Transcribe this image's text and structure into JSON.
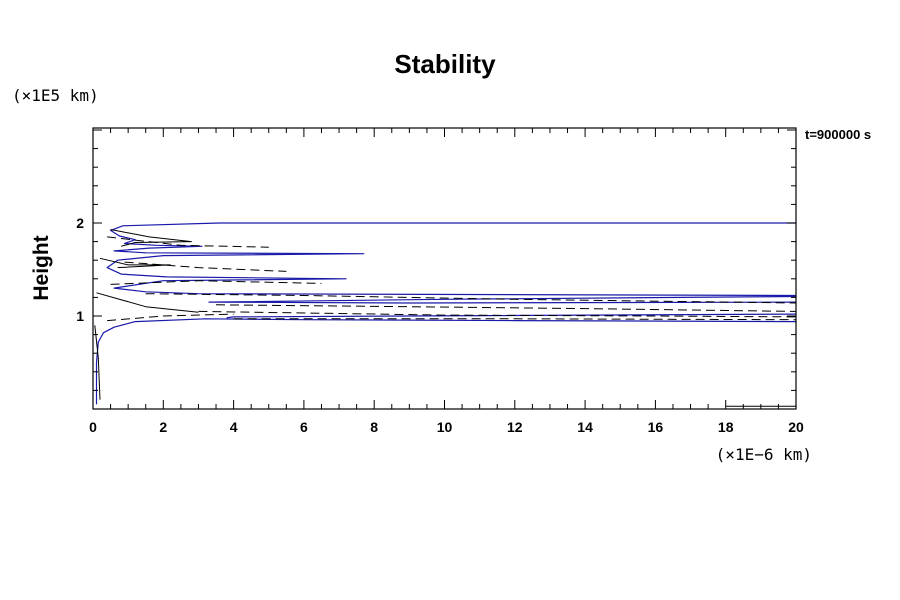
{
  "chart_data": {
    "type": "line",
    "title": "Stability",
    "ylabel": "Height",
    "xlabel": "",
    "x_unit": "(×1E−6 km)",
    "y_unit": "(×1E5 km)",
    "annotation": "t=900000 s",
    "xlim": [
      0,
      20
    ],
    "ylim": [
      0.03,
      3.0
    ],
    "x_ticks": [
      0,
      2,
      4,
      6,
      8,
      10,
      12,
      14,
      16,
      18,
      20
    ],
    "y_ticks": [
      1,
      2
    ],
    "grid": false,
    "colors": {
      "blue": "#1a1aaa",
      "black": "#000000"
    },
    "series": [
      {
        "color": "blue",
        "style": "solid",
        "points": [
          [
            20,
            2.0
          ],
          [
            3.6,
            2.0
          ],
          [
            0.85,
            1.97
          ],
          [
            0.5,
            1.92
          ],
          [
            0.75,
            1.86
          ],
          [
            1.2,
            1.82
          ],
          [
            0.9,
            1.78
          ],
          [
            1.8,
            1.76
          ],
          [
            3.1,
            1.75
          ],
          [
            1.6,
            1.73
          ],
          [
            0.6,
            1.7
          ],
          [
            1.5,
            1.68
          ],
          [
            7.7,
            1.67
          ],
          [
            2.0,
            1.65
          ],
          [
            0.7,
            1.6
          ],
          [
            0.4,
            1.52
          ],
          [
            0.8,
            1.45
          ],
          [
            2.1,
            1.42
          ],
          [
            7.2,
            1.4
          ],
          [
            2.0,
            1.38
          ],
          [
            0.6,
            1.3
          ],
          [
            1.5,
            1.26
          ],
          [
            3.0,
            1.24
          ],
          [
            20,
            1.22
          ]
        ]
      },
      {
        "color": "blue",
        "style": "solid",
        "points": [
          [
            20,
            1.21
          ],
          [
            10,
            1.18
          ],
          [
            3.3,
            1.15
          ],
          [
            9,
            1.14
          ],
          [
            20,
            1.15
          ]
        ]
      },
      {
        "color": "blue",
        "style": "solid",
        "points": [
          [
            20,
            0.94
          ],
          [
            12,
            0.95
          ],
          [
            6,
            0.96
          ],
          [
            3.2,
            0.97
          ],
          [
            1.2,
            0.94
          ],
          [
            0.6,
            0.88
          ],
          [
            0.3,
            0.82
          ],
          [
            0.15,
            0.72
          ],
          [
            0.1,
            0.5
          ],
          [
            0.1,
            0.05
          ]
        ]
      },
      {
        "color": "blue",
        "style": "solid",
        "points": [
          [
            20,
            1.02
          ],
          [
            9,
            1.0
          ],
          [
            4,
            0.99
          ],
          [
            3.8,
            0.98
          ]
        ]
      },
      {
        "color": "black",
        "style": "solid",
        "points": [
          [
            0.5,
            1.93
          ],
          [
            1.6,
            1.85
          ],
          [
            2.8,
            1.8
          ],
          [
            1.2,
            1.79
          ],
          [
            0.8,
            1.75
          ]
        ]
      },
      {
        "color": "black",
        "style": "solid",
        "points": [
          [
            0.2,
            1.62
          ],
          [
            1.0,
            1.55
          ],
          [
            2.2,
            1.55
          ],
          [
            0.7,
            1.52
          ]
        ]
      },
      {
        "color": "black",
        "style": "dashed",
        "points": [
          [
            0.4,
            1.85
          ],
          [
            2.5,
            1.76
          ],
          [
            5.0,
            1.74
          ]
        ]
      },
      {
        "color": "black",
        "style": "dashed",
        "points": [
          [
            0.9,
            1.58
          ],
          [
            3.0,
            1.52
          ],
          [
            5.5,
            1.48
          ]
        ]
      },
      {
        "color": "black",
        "style": "dashed",
        "points": [
          [
            0.5,
            1.34
          ],
          [
            3.0,
            1.38
          ],
          [
            6.5,
            1.35
          ]
        ]
      },
      {
        "color": "black",
        "style": "dashed",
        "points": [
          [
            1.5,
            1.24
          ],
          [
            6.0,
            1.22
          ],
          [
            12.0,
            1.18
          ],
          [
            20,
            1.14
          ]
        ]
      },
      {
        "color": "black",
        "style": "dashed",
        "points": [
          [
            3.5,
            1.12
          ],
          [
            9.0,
            1.1
          ],
          [
            14.0,
            1.08
          ],
          [
            20,
            1.05
          ]
        ]
      },
      {
        "color": "black",
        "style": "dashed",
        "points": [
          [
            3.0,
            1.05
          ],
          [
            10.0,
            1.01
          ],
          [
            16.0,
            1.0
          ],
          [
            20,
            0.99
          ]
        ]
      },
      {
        "color": "black",
        "style": "dashed",
        "points": [
          [
            4.0,
            0.97
          ],
          [
            12.0,
            0.97
          ],
          [
            20,
            0.96
          ]
        ]
      },
      {
        "color": "black",
        "style": "dashed",
        "points": [
          [
            0.4,
            0.95
          ],
          [
            2.0,
            1.0
          ],
          [
            4.0,
            1.02
          ]
        ]
      },
      {
        "color": "black",
        "style": "solid",
        "points": [
          [
            0.1,
            1.25
          ],
          [
            1.5,
            1.1
          ],
          [
            3.0,
            1.04
          ]
        ]
      },
      {
        "color": "black",
        "style": "solid",
        "points": [
          [
            0.05,
            0.9
          ],
          [
            0.15,
            0.55
          ],
          [
            0.2,
            0.1
          ]
        ]
      },
      {
        "color": "black",
        "style": "solid",
        "points": [
          [
            18,
            0.03
          ],
          [
            20,
            0.03
          ]
        ]
      }
    ]
  }
}
